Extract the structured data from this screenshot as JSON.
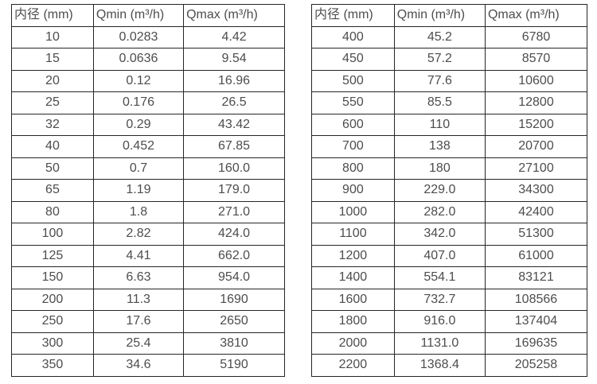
{
  "page": {
    "background_color": "#ffffff",
    "text_color": "#4d4d4d",
    "border_color": "#262626"
  },
  "chart_data": [
    {
      "type": "table",
      "title": "",
      "headers": [
        "内径 (mm)",
        "Qmin (m³/h)",
        "Qmax (m³/h)"
      ],
      "rows": [
        [
          "10",
          "0.0283",
          "4.42"
        ],
        [
          "15",
          "0.0636",
          "9.54"
        ],
        [
          "20",
          "0.12",
          "16.96"
        ],
        [
          "25",
          "0.176",
          "26.5"
        ],
        [
          "32",
          "0.29",
          "43.42"
        ],
        [
          "40",
          "0.452",
          "67.85"
        ],
        [
          "50",
          "0.7",
          "160.0"
        ],
        [
          "65",
          "1.19",
          "179.0"
        ],
        [
          "80",
          "1.8",
          "271.0"
        ],
        [
          "100",
          "2.82",
          "424.0"
        ],
        [
          "125",
          "4.41",
          "662.0"
        ],
        [
          "150",
          "6.63",
          "954.0"
        ],
        [
          "200",
          "11.3",
          "1690"
        ],
        [
          "250",
          "17.6",
          "2650"
        ],
        [
          "300",
          "25.4",
          "3810"
        ],
        [
          "350",
          "34.6",
          "5190"
        ]
      ]
    },
    {
      "type": "table",
      "title": "",
      "headers": [
        "内径 (mm)",
        "Qmin (m³/h)",
        "Qmax (m³/h)"
      ],
      "rows": [
        [
          "400",
          "45.2",
          "6780"
        ],
        [
          "450",
          "57.2",
          "8570"
        ],
        [
          "500",
          "77.6",
          "10600"
        ],
        [
          "550",
          "85.5",
          "12800"
        ],
        [
          "600",
          "110",
          "15200"
        ],
        [
          "700",
          "138",
          "20700"
        ],
        [
          "800",
          "180",
          "27100"
        ],
        [
          "900",
          "229.0",
          "34300"
        ],
        [
          "1000",
          "282.0",
          "42400"
        ],
        [
          "1100",
          "342.0",
          "51300"
        ],
        [
          "1200",
          "407.0",
          "61000"
        ],
        [
          "1400",
          "554.1",
          "83121"
        ],
        [
          "1600",
          "732.7",
          "108566"
        ],
        [
          "1800",
          "916.0",
          "137404"
        ],
        [
          "2000",
          "1131.0",
          "169635"
        ],
        [
          "2200",
          "1368.4",
          "205258"
        ]
      ]
    }
  ]
}
